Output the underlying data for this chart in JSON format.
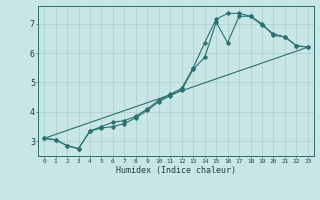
{
  "title": "",
  "xlabel": "Humidex (Indice chaleur)",
  "ylabel": "",
  "xlim": [
    -0.5,
    23.5
  ],
  "ylim": [
    2.5,
    7.6
  ],
  "xtick_labels": [
    "0",
    "1",
    "2",
    "3",
    "4",
    "5",
    "6",
    "7",
    "8",
    "9",
    "10",
    "11",
    "12",
    "13",
    "14",
    "15",
    "16",
    "17",
    "18",
    "19",
    "20",
    "21",
    "22",
    "23"
  ],
  "ytick_labels": [
    "3",
    "4",
    "5",
    "6",
    "7"
  ],
  "ytick_vals": [
    3,
    4,
    5,
    6,
    7
  ],
  "bg_color": "#c8e6e6",
  "line_color": "#2a7070",
  "grid_color": "#aacece",
  "line1_x": [
    0,
    1,
    2,
    3,
    4,
    5,
    6,
    7,
    8,
    9,
    10,
    11,
    12,
    13,
    14,
    15,
    16,
    17,
    18,
    19,
    20,
    21,
    22,
    23
  ],
  "line1_y": [
    3.1,
    3.05,
    2.85,
    2.75,
    3.35,
    3.45,
    3.5,
    3.6,
    3.8,
    4.05,
    4.35,
    4.55,
    4.75,
    5.45,
    5.85,
    7.05,
    6.35,
    7.25,
    7.25,
    6.95,
    6.65,
    6.55,
    6.25,
    6.2
  ],
  "line2_x": [
    0,
    1,
    2,
    3,
    4,
    5,
    6,
    7,
    8,
    9,
    10,
    11,
    12,
    13,
    14,
    15,
    16,
    17,
    18,
    19,
    20,
    21,
    22,
    23
  ],
  "line2_y": [
    3.1,
    3.05,
    2.85,
    2.75,
    3.35,
    3.5,
    3.65,
    3.7,
    3.85,
    4.1,
    4.4,
    4.6,
    4.8,
    5.5,
    6.35,
    7.15,
    7.35,
    7.35,
    7.25,
    7.0,
    6.6,
    6.55,
    6.25,
    6.2
  ],
  "line3_x": [
    0,
    23
  ],
  "line3_y": [
    3.1,
    6.2
  ],
  "figsize": [
    3.2,
    2.0
  ],
  "dpi": 100
}
